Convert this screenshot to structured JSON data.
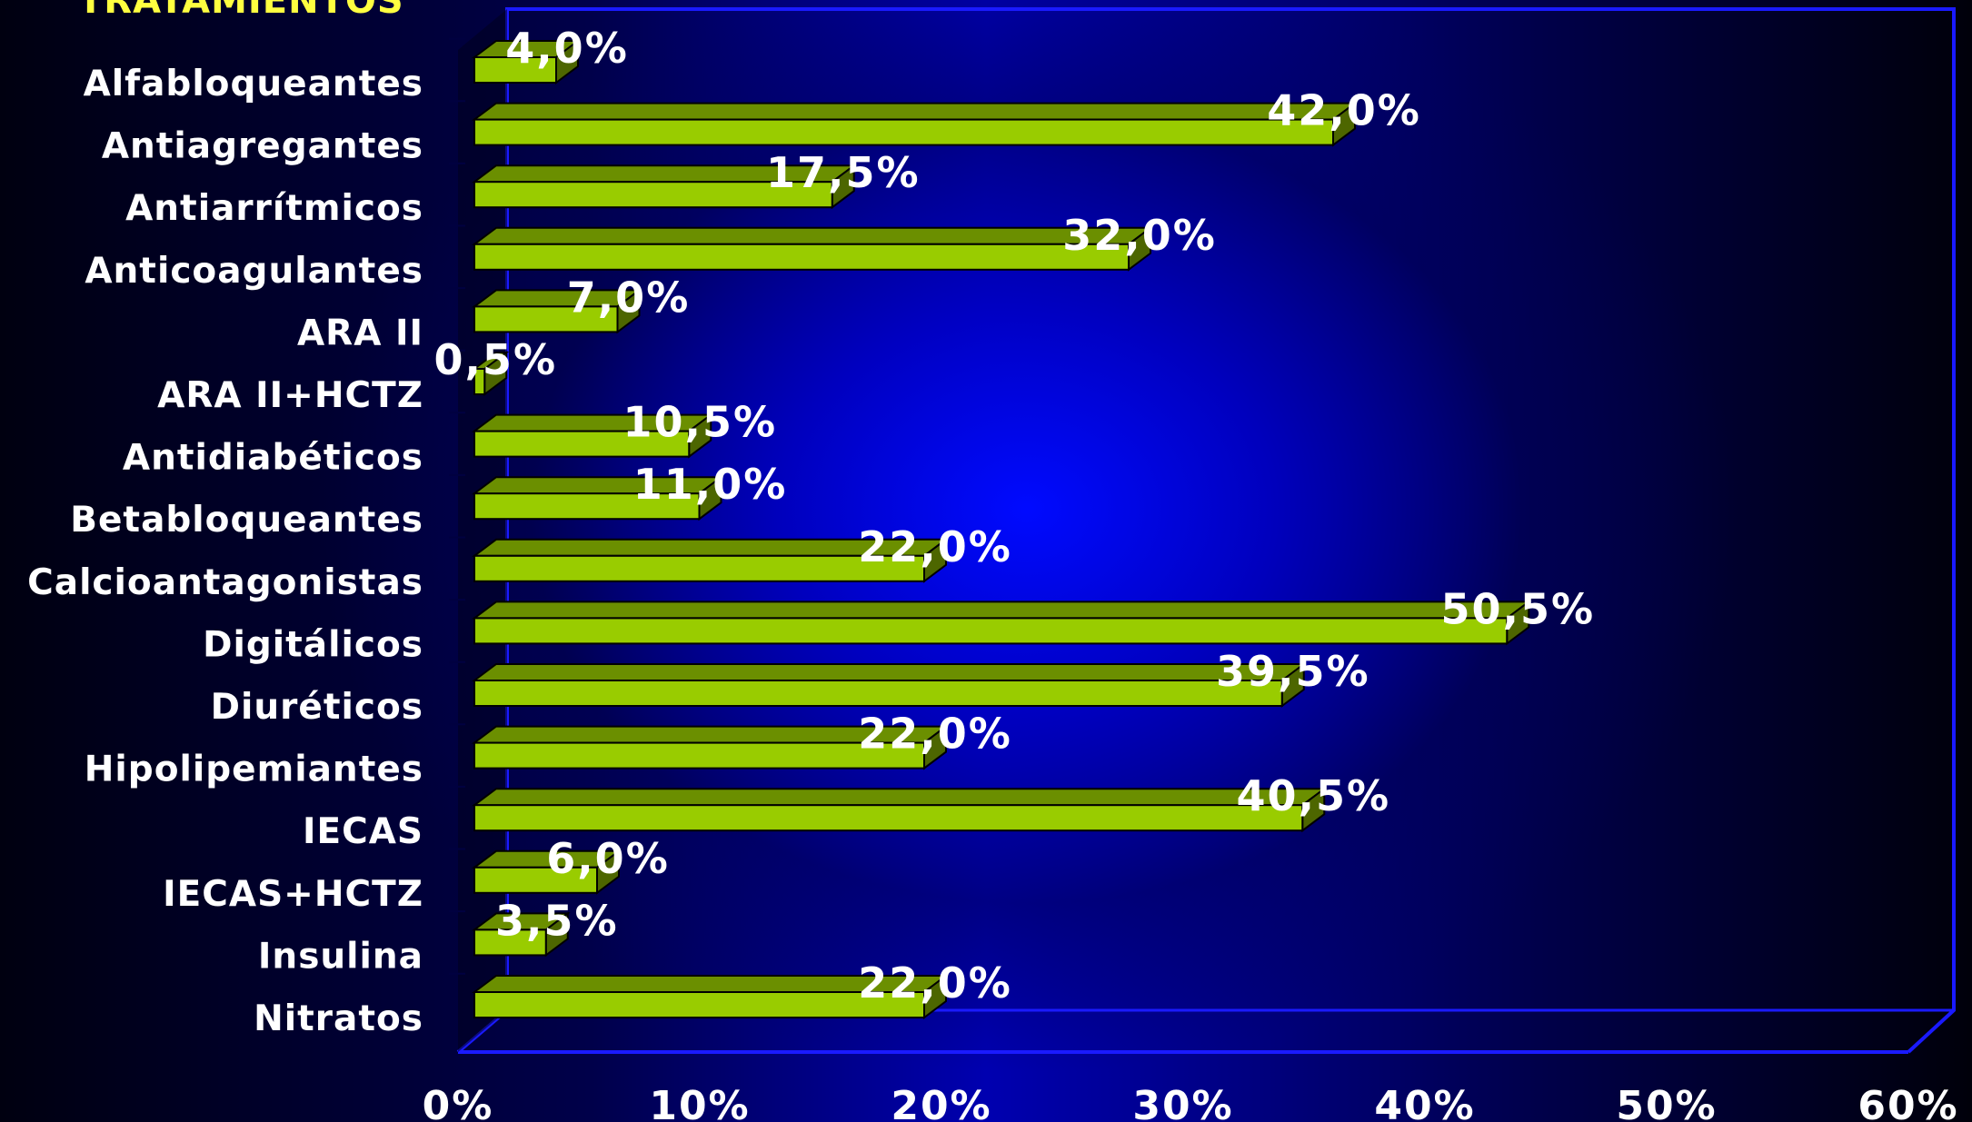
{
  "colors": {
    "bar_front": "#99cc00",
    "bar_top": "#6b8f00",
    "bar_side": "#4d6600",
    "title": "#ffff40",
    "frame": "#1a1aff",
    "text": "#ffffff"
  },
  "chart_data": {
    "type": "bar",
    "orientation": "horizontal",
    "title": "TRATAMIENTOS",
    "categories": [
      "Alfabloqueantes",
      "Antiagregantes",
      "Antiarrítmicos",
      "Anticoagulantes",
      "ARA II",
      "ARA II+HCTZ",
      "Antidiabéticos",
      "Betabloqueantes",
      "Calcioantagonistas",
      "Digitálicos",
      "Diuréticos",
      "Hipolipemiantes",
      "IECAS",
      "IECAS+HCTZ",
      "Insulina",
      "Nitratos"
    ],
    "values": [
      4.0,
      42.0,
      17.5,
      32.0,
      7.0,
      0.5,
      10.5,
      11.0,
      22.0,
      50.5,
      39.5,
      22.0,
      40.5,
      6.0,
      3.5,
      22.0
    ],
    "value_labels": [
      "4,0%",
      "42,0%",
      "17,5%",
      "32,0%",
      "7,0%",
      "0,5%",
      "10,5%",
      "11,0%",
      "22,0%",
      "50,5%",
      "39,5%",
      "22,0%",
      "40,5%",
      "6,0%",
      "3,5%",
      "22,0%"
    ],
    "x_ticks": [
      "0%",
      "10%",
      "20%",
      "30%",
      "40%",
      "50%",
      "60%"
    ],
    "xlim": [
      0,
      60
    ],
    "grid": false,
    "legend": "none"
  }
}
